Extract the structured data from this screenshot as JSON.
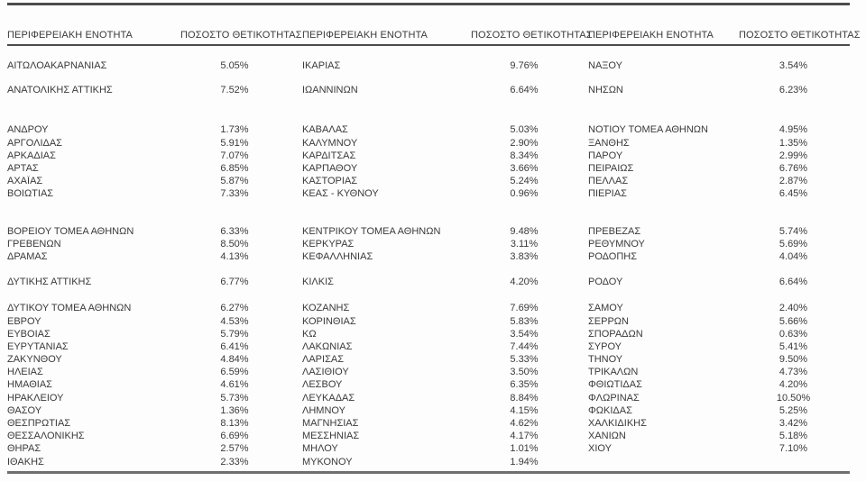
{
  "page": {
    "background": "#fdfdfd"
  },
  "table": {
    "headers": {
      "region": "ΠΕΡΙΦΕΡΕΙΑΚΗ ΕΝΟΤΗΤΑ",
      "rate": "ΠΟΣΟΣΤΟ ΘΕΤΙΚΟΤΗΤΑΣ"
    },
    "column_pairs": 3,
    "colors": {
      "text": "#3a3a3a",
      "line": "#4c4c4c",
      "bottom_line": "#6e6e6e"
    },
    "rows": [
      {
        "gap": 15,
        "cells": [
          {
            "region": "ΑΙΤΩΛΟΑΚΑΡΝΑΝΙΑΣ",
            "rate": "5.05%"
          },
          {
            "region": "ΙΚΑΡΙΑΣ",
            "rate": "9.76%"
          },
          {
            "region": "ΝΑΞΟΥ",
            "rate": "3.54%"
          }
        ]
      },
      {
        "gap": 13,
        "cells": [
          {
            "region": "ΑΝΑΤΟΛΙΚΗΣ ΑΤΤΙΚΗΣ",
            "rate": "7.52%"
          },
          {
            "region": "ΙΩΑΝΝΙΝΩΝ",
            "rate": "6.64%"
          },
          {
            "region": "ΝΗΣΩΝ",
            "rate": "6.23%"
          }
        ]
      },
      {
        "gap": 30,
        "cells": [
          {
            "region": "ΑΝΔΡΟΥ",
            "rate": "1.73%"
          },
          {
            "region": "ΚΑΒΑΛΑΣ",
            "rate": "5.03%"
          },
          {
            "region": "ΝΟΤΙΟΥ ΤΟΜΕΑ ΑΘΗΝΩΝ",
            "rate": "4.95%"
          }
        ]
      },
      {
        "gap": 0,
        "cells": [
          {
            "region": "ΑΡΓΟΛΙΔΑΣ",
            "rate": "5.91%"
          },
          {
            "region": "ΚΑΛΥΜΝΟΥ",
            "rate": "2.90%"
          },
          {
            "region": "ΞΑΝΘΗΣ",
            "rate": "1.35%"
          }
        ]
      },
      {
        "gap": 0,
        "cells": [
          {
            "region": "ΑΡΚΑΔΙΑΣ",
            "rate": "7.07%"
          },
          {
            "region": "ΚΑΡΔΙΤΣΑΣ",
            "rate": "8.34%"
          },
          {
            "region": "ΠΑΡΟΥ",
            "rate": "2.99%"
          }
        ]
      },
      {
        "gap": 0,
        "cells": [
          {
            "region": "ΑΡΤΑΣ",
            "rate": "6.85%"
          },
          {
            "region": "ΚΑΡΠΑΘΟΥ",
            "rate": "3.66%"
          },
          {
            "region": "ΠΕΙΡΑΙΩΣ",
            "rate": "6.76%"
          }
        ]
      },
      {
        "gap": 0,
        "cells": [
          {
            "region": "ΑΧΑΪΑΣ",
            "rate": "5.87%"
          },
          {
            "region": "ΚΑΣΤΟΡΙΑΣ",
            "rate": "5.24%"
          },
          {
            "region": "ΠΕΛΛΑΣ",
            "rate": "2.87%"
          }
        ]
      },
      {
        "gap": 0,
        "cells": [
          {
            "region": "ΒΟΙΩΤΙΑΣ",
            "rate": "7.33%"
          },
          {
            "region": "ΚΕΑΣ - ΚΥΘΝΟΥ",
            "rate": "0.96%"
          },
          {
            "region": "ΠΙΕΡΙΑΣ",
            "rate": "6.45%"
          }
        ]
      },
      {
        "gap": 27,
        "cells": [
          {
            "region": "ΒΟΡΕΙΟΥ ΤΟΜΕΑ ΑΘΗΝΩΝ",
            "rate": "6.33%"
          },
          {
            "region": "ΚΕΝΤΡΙΚΟΥ ΤΟΜΕΑ ΑΘΗΝΩΝ",
            "rate": "9.48%"
          },
          {
            "region": "ΠΡΕΒΕΖΑΣ",
            "rate": "5.74%"
          }
        ]
      },
      {
        "gap": 0,
        "cells": [
          {
            "region": "ΓΡΕΒΕΝΩΝ",
            "rate": "8.50%"
          },
          {
            "region": "ΚΕΡΚΥΡΑΣ",
            "rate": "3.11%"
          },
          {
            "region": "ΡΕΘΥΜΝΟΥ",
            "rate": "5.69%"
          }
        ]
      },
      {
        "gap": 0,
        "cells": [
          {
            "region": "ΔΡΑΜΑΣ",
            "rate": "4.13%"
          },
          {
            "region": "ΚΕΦΑΛΛΗΝΙΑΣ",
            "rate": "3.83%"
          },
          {
            "region": "ΡΟΔΟΠΗΣ",
            "rate": "4.04%"
          }
        ]
      },
      {
        "gap": 14,
        "cells": [
          {
            "region": "ΔΥΤΙΚΗΣ ΑΤΤΙΚΗΣ",
            "rate": "6.77%"
          },
          {
            "region": "ΚΙΛΚΙΣ",
            "rate": "4.20%"
          },
          {
            "region": "ΡΟΔΟΥ",
            "rate": "6.64%"
          }
        ]
      },
      {
        "gap": 15,
        "cells": [
          {
            "region": "ΔΥΤΙΚΟΥ ΤΟΜΕΑ ΑΘΗΝΩΝ",
            "rate": "6.27%"
          },
          {
            "region": "ΚΟΖΑΝΗΣ",
            "rate": "7.69%"
          },
          {
            "region": "ΣΑΜΟΥ",
            "rate": "2.40%"
          }
        ]
      },
      {
        "gap": 0,
        "cells": [
          {
            "region": "ΕΒΡΟΥ",
            "rate": "4.53%"
          },
          {
            "region": "ΚΟΡΙΝΘΙΑΣ",
            "rate": "5.83%"
          },
          {
            "region": "ΣΕΡΡΩΝ",
            "rate": "5.66%"
          }
        ]
      },
      {
        "gap": 0,
        "cells": [
          {
            "region": "ΕΥΒΟΙΑΣ",
            "rate": "5.79%"
          },
          {
            "region": "ΚΩ",
            "rate": "3.54%"
          },
          {
            "region": "ΣΠΟΡΑΔΩΝ",
            "rate": "0.63%"
          }
        ]
      },
      {
        "gap": 0,
        "cells": [
          {
            "region": "ΕΥΡΥΤΑΝΙΑΣ",
            "rate": "6.41%"
          },
          {
            "region": "ΛΑΚΩΝΙΑΣ",
            "rate": "7.44%"
          },
          {
            "region": "ΣΥΡΟΥ",
            "rate": "5.41%"
          }
        ]
      },
      {
        "gap": 0,
        "cells": [
          {
            "region": "ΖΑΚΥΝΘΟΥ",
            "rate": "4.84%"
          },
          {
            "region": "ΛΑΡΙΣΑΣ",
            "rate": "5.33%"
          },
          {
            "region": "ΤΗΝΟΥ",
            "rate": "9.50%"
          }
        ]
      },
      {
        "gap": 0,
        "cells": [
          {
            "region": "ΗΛΕΙΑΣ",
            "rate": "6.59%"
          },
          {
            "region": "ΛΑΣΙΘΙΟΥ",
            "rate": "3.50%"
          },
          {
            "region": "ΤΡΙΚΑΛΩΝ",
            "rate": "4.73%"
          }
        ]
      },
      {
        "gap": 0,
        "cells": [
          {
            "region": "ΗΜΑΘΙΑΣ",
            "rate": "4.61%"
          },
          {
            "region": "ΛΕΣΒΟΥ",
            "rate": "6.35%"
          },
          {
            "region": "ΦΘΙΩΤΙΔΑΣ",
            "rate": "4.20%"
          }
        ]
      },
      {
        "gap": 0,
        "cells": [
          {
            "region": "ΗΡΑΚΛΕΙΟΥ",
            "rate": "5.73%"
          },
          {
            "region": "ΛΕΥΚΑΔΑΣ",
            "rate": "8.84%"
          },
          {
            "region": "ΦΛΩΡΙΝΑΣ",
            "rate": "10.50%"
          }
        ]
      },
      {
        "gap": 0,
        "cells": [
          {
            "region": "ΘΑΣΟΥ",
            "rate": "1.36%"
          },
          {
            "region": "ΛΗΜΝΟΥ",
            "rate": "4.15%"
          },
          {
            "region": "ΦΩΚΙΔΑΣ",
            "rate": "5.25%"
          }
        ]
      },
      {
        "gap": 0,
        "cells": [
          {
            "region": "ΘΕΣΠΡΩΤΙΑΣ",
            "rate": "8.13%"
          },
          {
            "region": "ΜΑΓΝΗΣΙΑΣ",
            "rate": "4.62%"
          },
          {
            "region": "ΧΑΛΚΙΔΙΚΗΣ",
            "rate": "3.42%"
          }
        ]
      },
      {
        "gap": 0,
        "cells": [
          {
            "region": "ΘΕΣΣΑΛΟΝΙΚΗΣ",
            "rate": "6.69%"
          },
          {
            "region": "ΜΕΣΣΗΝΙΑΣ",
            "rate": "4.17%"
          },
          {
            "region": "ΧΑΝΙΩΝ",
            "rate": "5.18%"
          }
        ]
      },
      {
        "gap": 0,
        "cells": [
          {
            "region": "ΘΗΡΑΣ",
            "rate": "2.57%"
          },
          {
            "region": "ΜΗΛΟΥ",
            "rate": "1.01%"
          },
          {
            "region": "ΧΙΟΥ",
            "rate": "7.10%"
          }
        ]
      },
      {
        "gap": 0,
        "cells": [
          {
            "region": "ΙΘΑΚΗΣ",
            "rate": "2.33%"
          },
          {
            "region": "ΜΥΚΟΝΟΥ",
            "rate": "1.94%"
          },
          {
            "region": "",
            "rate": ""
          }
        ]
      }
    ]
  }
}
